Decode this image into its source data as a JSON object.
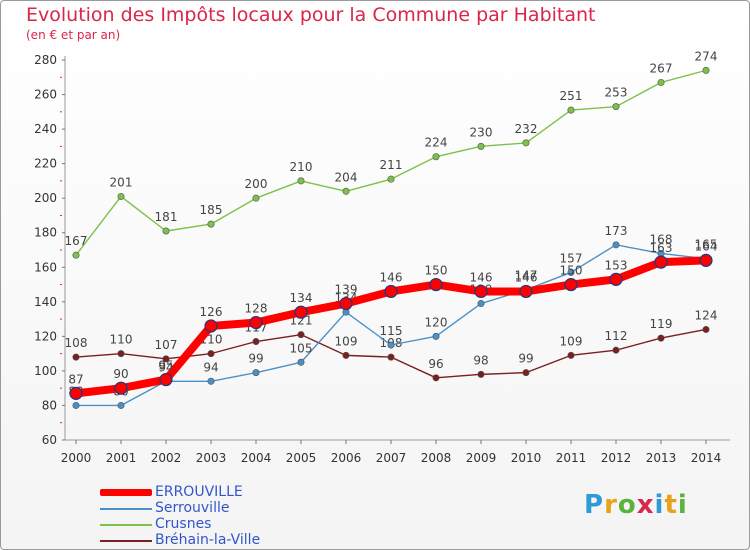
{
  "header": {
    "title": "Evolution des Impôts locaux pour la Commune par Habitant",
    "subtitle": "(en € et par an)"
  },
  "logo": {
    "text": "Proxiti",
    "colors": [
      "#2f9bd6",
      "#e8a21a",
      "#5ab33a",
      "#d9264a",
      "#2f9bd6",
      "#e8a21a",
      "#5ab33a"
    ]
  },
  "chart_data": {
    "type": "line",
    "title": "Evolution des Impôts locaux pour la Commune par Habitant",
    "subtitle": "(en € et par an)",
    "x": [
      "2000",
      "2001",
      "2002",
      "2003",
      "2004",
      "2005",
      "2006",
      "2007",
      "2008",
      "2009",
      "2010",
      "2011",
      "2012",
      "2013",
      "2014"
    ],
    "ylim": [
      60,
      280
    ],
    "yticks": [
      60,
      80,
      100,
      120,
      140,
      160,
      180,
      200,
      220,
      240,
      260,
      280
    ],
    "grid": false,
    "legend_position": "bottom-left",
    "series": [
      {
        "name": "Bréhain-la-Ville",
        "color": "#7a1f1f",
        "values": [
          108,
          110,
          107,
          110,
          117,
          121,
          109,
          108,
          96,
          98,
          99,
          109,
          112,
          119,
          124
        ]
      },
      {
        "name": "Serrouville",
        "color": "#4a90c8",
        "values": [
          80,
          80,
          94,
          94,
          99,
          105,
          134,
          115,
          120,
          139,
          147,
          157,
          173,
          168,
          165
        ]
      },
      {
        "name": "Crusnes",
        "color": "#7cc24a",
        "values": [
          167,
          201,
          181,
          185,
          200,
          210,
          204,
          211,
          224,
          230,
          232,
          251,
          253,
          267,
          274
        ]
      },
      {
        "name": "ERROUVILLE",
        "color": "#ff0000",
        "values": [
          87,
          90,
          95,
          126,
          128,
          134,
          139,
          146,
          150,
          146,
          146,
          150,
          153,
          163,
          164
        ]
      }
    ],
    "legend": [
      {
        "name": "ERROUVILLE",
        "color": "#ff0000"
      },
      {
        "name": "Serrouville",
        "color": "#4a90c8"
      },
      {
        "name": "Crusnes",
        "color": "#7cc24a"
      },
      {
        "name": "Bréhain-la-Ville",
        "color": "#7a1f1f"
      }
    ]
  }
}
